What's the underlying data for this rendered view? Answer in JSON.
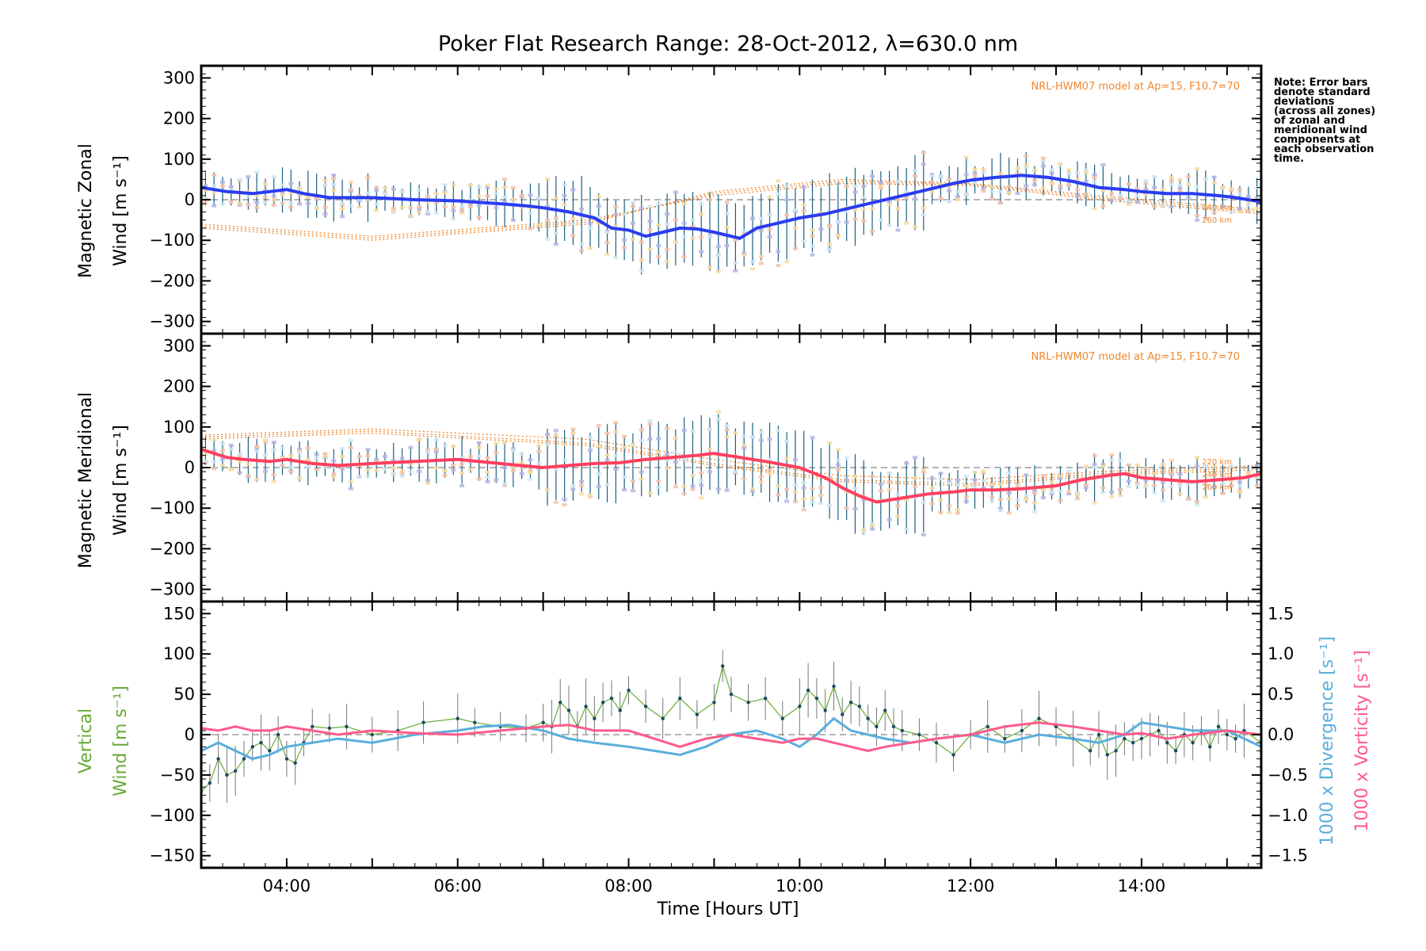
{
  "title": "Poker Flat Research Range: 28-Oct-2012, λ=630.0 nm",
  "note_lines": [
    "Note: Error bars",
    "denote standard",
    "deviations",
    "(across all zones)",
    "of zonal and",
    "meridional wind",
    "components at",
    "each observation",
    "time."
  ],
  "model_label": "NRL-HWM07 model at Ap=15, F10.7=70",
  "colors": {
    "zonal_mean": "#2a3cf0",
    "meridional_mean": "#ff4060",
    "vertical": "#66aa33",
    "divergence": "#5aaedc",
    "vorticity": "#ff5a8a",
    "model": "#f0882d",
    "zone_scatter": "#b4b4e6",
    "error_bars": "#1a6080"
  },
  "chart_data": [
    {
      "type": "line",
      "panel": "zonal",
      "ylabel_line1": "Magnetic Zonal",
      "ylabel_line2": "Wind [m s⁻¹]",
      "ylim": [
        -330,
        330
      ],
      "xlim": [
        3.0,
        15.4
      ],
      "yticks": [
        "300",
        "200",
        "100",
        "0",
        "−100",
        "−200",
        "−300"
      ],
      "model_altitudes": [
        "240 km",
        "260 km"
      ],
      "series": [
        {
          "x": [
            3.0,
            3.3,
            3.6,
            3.8,
            4.0,
            4.2,
            4.5,
            5.0,
            5.5,
            6.0,
            6.5,
            6.8,
            7.0,
            7.3,
            7.6,
            7.8,
            8.0,
            8.2,
            8.4,
            8.6,
            8.8,
            9.0,
            9.3,
            9.5,
            9.8,
            10.0,
            10.3,
            10.6,
            10.9,
            11.2,
            11.5,
            11.8,
            12.0,
            12.3,
            12.6,
            12.9,
            13.2,
            13.5,
            13.8,
            14.0,
            14.3,
            14.6,
            14.9,
            15.1,
            15.4
          ],
          "y": [
            30,
            20,
            15,
            20,
            25,
            15,
            5,
            5,
            0,
            -3,
            -10,
            -15,
            -20,
            -30,
            -45,
            -70,
            -75,
            -90,
            -80,
            -70,
            -72,
            -80,
            -95,
            -70,
            -55,
            -45,
            -35,
            -20,
            -5,
            10,
            25,
            40,
            48,
            55,
            60,
            55,
            45,
            30,
            25,
            20,
            15,
            15,
            10,
            5,
            -5
          ]
        }
      ]
    },
    {
      "type": "line",
      "panel": "meridional",
      "ylabel_line1": "Magnetic Meridional",
      "ylabel_line2": "Wind [m s⁻¹]",
      "ylim": [
        -330,
        330
      ],
      "xlim": [
        3.0,
        15.4
      ],
      "yticks": [
        "300",
        "200",
        "100",
        "0",
        "−100",
        "−200",
        "−300"
      ],
      "model_altitudes": [
        "220 km",
        "240 km",
        "260 km"
      ],
      "series": [
        {
          "x": [
            3.0,
            3.3,
            3.5,
            3.8,
            4.0,
            4.3,
            4.6,
            5.0,
            5.5,
            6.0,
            6.5,
            7.0,
            7.3,
            7.6,
            7.9,
            8.2,
            8.5,
            8.8,
            9.0,
            9.3,
            9.6,
            10.0,
            10.3,
            10.5,
            10.7,
            10.9,
            11.2,
            11.5,
            11.8,
            12.0,
            12.3,
            12.6,
            13.0,
            13.3,
            13.6,
            13.8,
            14.0,
            14.3,
            14.6,
            14.9,
            15.2,
            15.4
          ],
          "y": [
            45,
            25,
            20,
            15,
            20,
            10,
            5,
            10,
            15,
            20,
            10,
            0,
            5,
            10,
            12,
            20,
            25,
            30,
            35,
            25,
            15,
            0,
            -25,
            -50,
            -70,
            -85,
            -75,
            -65,
            -60,
            -55,
            -55,
            -52,
            -45,
            -30,
            -20,
            -15,
            -25,
            -30,
            -35,
            -30,
            -25,
            -15
          ]
        }
      ]
    },
    {
      "type": "line",
      "panel": "vertical",
      "ylabel_line1": "Vertical",
      "ylabel_line2": "Wind [m s⁻¹]",
      "ylim": [
        -165,
        165
      ],
      "xlim": [
        3.0,
        15.4
      ],
      "xlabel": "Time [Hours UT]",
      "xticks": [
        "04:00",
        "06:00",
        "08:00",
        "10:00",
        "12:00",
        "14:00"
      ],
      "yticks": [
        "150",
        "100",
        "50",
        "0",
        "−50",
        "−100",
        "−150"
      ],
      "y2label_divergence": "1000 x Divergence [s⁻¹]",
      "y2label_vorticity": "1000 x Vorticity [s⁻¹]",
      "y2lim": [
        -1.65,
        1.65
      ],
      "y2ticks": [
        "1.5",
        "1.0",
        "0.5",
        "0.0",
        "−0.5",
        "−1.0",
        "−1.5"
      ],
      "series": [
        {
          "axis": "left",
          "x": [
            3.0,
            3.1,
            3.2,
            3.3,
            3.4,
            3.5,
            3.6,
            3.7,
            3.8,
            3.9,
            4.0,
            4.1,
            4.2,
            4.3,
            4.5,
            4.7,
            5.0,
            5.3,
            5.6,
            6.0,
            6.2,
            6.5,
            6.8,
            7.0,
            7.1,
            7.2,
            7.3,
            7.4,
            7.5,
            7.6,
            7.7,
            7.8,
            7.9,
            8.0,
            8.2,
            8.4,
            8.6,
            8.8,
            9.0,
            9.1,
            9.2,
            9.4,
            9.6,
            9.8,
            10.0,
            10.1,
            10.2,
            10.3,
            10.4,
            10.5,
            10.6,
            10.7,
            10.8,
            10.9,
            11.0,
            11.1,
            11.2,
            11.4,
            11.6,
            11.8,
            12.0,
            12.2,
            12.4,
            12.6,
            12.8,
            13.0,
            13.2,
            13.4,
            13.5,
            13.6,
            13.7,
            13.8,
            13.9,
            14.0,
            14.1,
            14.2,
            14.3,
            14.4,
            14.5,
            14.6,
            14.7,
            14.8,
            14.9,
            15.0,
            15.1,
            15.2,
            15.4
          ],
          "y": [
            -70,
            -60,
            -30,
            -50,
            -45,
            -30,
            -15,
            -10,
            -20,
            0,
            -30,
            -35,
            -10,
            10,
            8,
            10,
            0,
            5,
            15,
            20,
            15,
            10,
            8,
            15,
            10,
            40,
            30,
            10,
            35,
            20,
            40,
            45,
            30,
            55,
            35,
            20,
            45,
            25,
            40,
            85,
            50,
            40,
            45,
            20,
            35,
            55,
            45,
            30,
            60,
            25,
            40,
            35,
            20,
            10,
            30,
            10,
            5,
            0,
            -10,
            -25,
            0,
            10,
            -5,
            5,
            20,
            10,
            -5,
            -20,
            0,
            -25,
            -20,
            -5,
            -10,
            -5,
            0,
            5,
            -10,
            -20,
            0,
            -10,
            5,
            -15,
            10,
            0,
            -5,
            5,
            -10
          ]
        },
        {
          "axis": "right",
          "name": "Divergence",
          "x": [
            3.0,
            3.2,
            3.4,
            3.6,
            3.8,
            4.0,
            4.3,
            4.6,
            5.0,
            5.5,
            6.0,
            6.3,
            6.6,
            7.0,
            7.3,
            7.6,
            8.0,
            8.3,
            8.6,
            8.9,
            9.2,
            9.5,
            9.8,
            10.0,
            10.2,
            10.4,
            10.6,
            10.8,
            11.0,
            11.3,
            11.6,
            12.0,
            12.4,
            12.8,
            13.2,
            13.5,
            13.8,
            14.0,
            14.3,
            14.6,
            15.0,
            15.4
          ],
          "y": [
            -0.2,
            -0.1,
            -0.2,
            -0.3,
            -0.25,
            -0.15,
            -0.1,
            -0.05,
            -0.1,
            0.0,
            0.05,
            0.1,
            0.12,
            0.05,
            -0.05,
            -0.1,
            -0.15,
            -0.2,
            -0.25,
            -0.15,
            0.0,
            0.05,
            -0.05,
            -0.15,
            0.0,
            0.2,
            0.05,
            0.0,
            -0.05,
            -0.1,
            -0.05,
            0.0,
            -0.1,
            0.0,
            -0.05,
            -0.1,
            0.0,
            0.15,
            0.1,
            0.05,
            0.05,
            -0.15
          ]
        },
        {
          "axis": "right",
          "name": "Vorticity",
          "x": [
            3.0,
            3.2,
            3.4,
            3.6,
            3.8,
            4.0,
            4.3,
            4.6,
            5.0,
            5.5,
            6.0,
            6.5,
            7.0,
            7.3,
            7.6,
            8.0,
            8.3,
            8.6,
            8.9,
            9.2,
            9.5,
            9.8,
            10.0,
            10.2,
            10.4,
            10.6,
            10.8,
            11.0,
            11.3,
            11.6,
            12.0,
            12.4,
            12.8,
            13.2,
            13.5,
            13.8,
            14.0,
            14.3,
            14.6,
            15.0,
            15.4
          ],
          "y": [
            0.08,
            0.05,
            0.1,
            0.05,
            0.05,
            0.1,
            0.05,
            0.0,
            0.05,
            0.02,
            0.0,
            0.05,
            0.1,
            0.12,
            0.05,
            0.05,
            -0.05,
            -0.15,
            -0.05,
            0.0,
            -0.05,
            -0.1,
            -0.05,
            -0.05,
            -0.1,
            -0.15,
            -0.2,
            -0.15,
            -0.1,
            -0.05,
            0.0,
            0.1,
            0.15,
            0.1,
            0.05,
            0.0,
            0.02,
            -0.05,
            0.0,
            0.05,
            0.0
          ]
        }
      ]
    }
  ]
}
